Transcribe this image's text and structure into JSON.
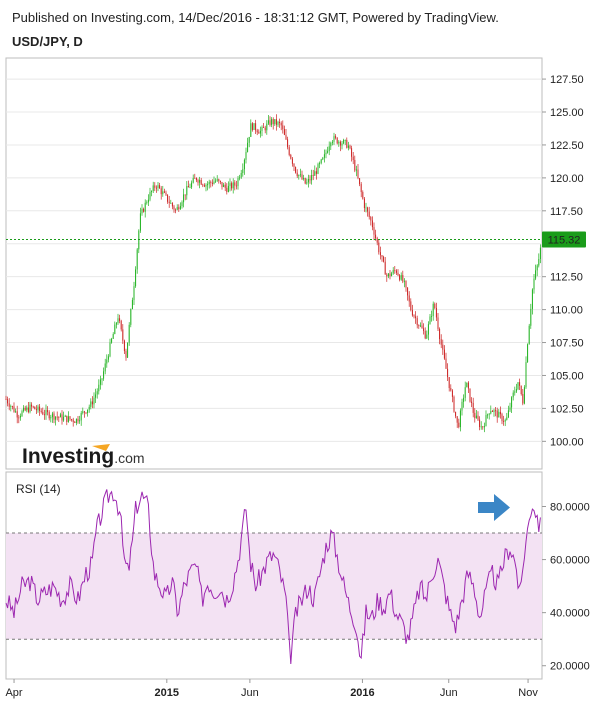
{
  "header": {
    "published": "Published on Investing.com, 14/Dec/2016 - 18:31:12 GMT, Powered by TradingView.",
    "symbol": "USD/JPY, D"
  },
  "watermark": {
    "brand": "Investing",
    "suffix": ".com"
  },
  "colors": {
    "up": "#21b221",
    "down": "#cc2222",
    "rsi_line": "#9c27b0",
    "rsi_band": "#f3e2f3",
    "price_line": "#1a9c1a",
    "arrow": "#3b86c6",
    "grid": "#e8e8e8"
  },
  "chart_data": [
    {
      "type": "candlestick",
      "title": "USD/JPY, D",
      "ylim": [
        97.9,
        129.1
      ],
      "yticks": [
        "127.50",
        "125.00",
        "122.50",
        "120.00",
        "117.50",
        "115.00",
        "112.50",
        "110.00",
        "107.50",
        "105.00",
        "102.50",
        "100.00"
      ],
      "last_price": "115.32",
      "grid": true,
      "path": [
        [
          0,
          103.2
        ],
        [
          12,
          102.0
        ],
        [
          25,
          102.6
        ],
        [
          40,
          102.1
        ],
        [
          55,
          101.8
        ],
        [
          70,
          101.6
        ],
        [
          85,
          102.8
        ],
        [
          95,
          104.5
        ],
        [
          105,
          107.5
        ],
        [
          112,
          109.5
        ],
        [
          120,
          106.5
        ],
        [
          128,
          112.0
        ],
        [
          134,
          117.0
        ],
        [
          142,
          118.5
        ],
        [
          150,
          119.5
        ],
        [
          160,
          118.5
        ],
        [
          170,
          117.5
        ],
        [
          180,
          119.0
        ],
        [
          190,
          120.0
        ],
        [
          200,
          119.5
        ],
        [
          210,
          119.8
        ],
        [
          220,
          119.2
        ],
        [
          230,
          119.5
        ],
        [
          237,
          121.0
        ],
        [
          245,
          124.0
        ],
        [
          255,
          123.5
        ],
        [
          265,
          124.3
        ],
        [
          275,
          124.0
        ],
        [
          283,
          122.0
        ],
        [
          290,
          120.5
        ],
        [
          300,
          119.5
        ],
        [
          310,
          120.5
        ],
        [
          318,
          121.5
        ],
        [
          325,
          123.0
        ],
        [
          333,
          122.8
        ],
        [
          342,
          122.5
        ],
        [
          350,
          120.5
        ],
        [
          358,
          118.0
        ],
        [
          366,
          116.5
        ],
        [
          373,
          114.5
        ],
        [
          381,
          112.5
        ],
        [
          390,
          113.0
        ],
        [
          398,
          112.0
        ],
        [
          405,
          110.0
        ],
        [
          412,
          109.0
        ],
        [
          420,
          108.0
        ],
        [
          428,
          110.5
        ],
        [
          436,
          107.0
        ],
        [
          444,
          104.0
        ],
        [
          452,
          101.0
        ],
        [
          460,
          104.5
        ],
        [
          468,
          102.0
        ],
        [
          476,
          101.0
        ],
        [
          484,
          102.5
        ],
        [
          492,
          102.0
        ],
        [
          500,
          101.5
        ],
        [
          507,
          103.5
        ],
        [
          512,
          104.5
        ],
        [
          517,
          103.0
        ],
        [
          522,
          108.0
        ],
        [
          527,
          112.0
        ],
        [
          532,
          113.5
        ],
        [
          536,
          115.3
        ]
      ]
    },
    {
      "type": "line",
      "title": "RSI (14)",
      "ylim": [
        15,
        93
      ],
      "yticks": [
        "80.0000",
        "60.0000",
        "40.0000",
        "20.0000"
      ],
      "band": [
        30,
        70
      ],
      "series": [
        {
          "name": "RSI (14)",
          "points": [
            [
              0,
              45
            ],
            [
              8,
              40
            ],
            [
              16,
              50
            ],
            [
              24,
              52
            ],
            [
              32,
              45
            ],
            [
              40,
              48
            ],
            [
              48,
              50
            ],
            [
              56,
              45
            ],
            [
              64,
              50
            ],
            [
              72,
              45
            ],
            [
              80,
              55
            ],
            [
              86,
              58
            ],
            [
              90,
              70
            ],
            [
              96,
              78
            ],
            [
              102,
              84
            ],
            [
              108,
              86
            ],
            [
              114,
              78
            ],
            [
              118,
              60
            ],
            [
              122,
              55
            ],
            [
              126,
              65
            ],
            [
              130,
              80
            ],
            [
              136,
              84
            ],
            [
              142,
              80
            ],
            [
              148,
              55
            ],
            [
              154,
              50
            ],
            [
              160,
              45
            ],
            [
              166,
              52
            ],
            [
              172,
              40
            ],
            [
              178,
              50
            ],
            [
              184,
              55
            ],
            [
              190,
              58
            ],
            [
              196,
              45
            ],
            [
              202,
              52
            ],
            [
              208,
              48
            ],
            [
              214,
              50
            ],
            [
              220,
              45
            ],
            [
              226,
              50
            ],
            [
              232,
              60
            ],
            [
              237,
              72
            ],
            [
              240,
              80
            ],
            [
              244,
              60
            ],
            [
              250,
              50
            ],
            [
              256,
              55
            ],
            [
              262,
              60
            ],
            [
              268,
              62
            ],
            [
              274,
              55
            ],
            [
              280,
              45
            ],
            [
              284,
              22
            ],
            [
              290,
              40
            ],
            [
              296,
              45
            ],
            [
              302,
              50
            ],
            [
              308,
              45
            ],
            [
              314,
              55
            ],
            [
              320,
              65
            ],
            [
              326,
              70
            ],
            [
              332,
              60
            ],
            [
              338,
              50
            ],
            [
              344,
              42
            ],
            [
              350,
              36
            ],
            [
              355,
              22
            ],
            [
              360,
              40
            ],
            [
              366,
              38
            ],
            [
              372,
              45
            ],
            [
              378,
              42
            ],
            [
              384,
              48
            ],
            [
              390,
              40
            ],
            [
              396,
              36
            ],
            [
              402,
              30
            ],
            [
              408,
              40
            ],
            [
              414,
              50
            ],
            [
              420,
              45
            ],
            [
              426,
              55
            ],
            [
              432,
              60
            ],
            [
              438,
              50
            ],
            [
              444,
              40
            ],
            [
              450,
              35
            ],
            [
              456,
              45
            ],
            [
              462,
              55
            ],
            [
              468,
              50
            ],
            [
              474,
              38
            ],
            [
              480,
              48
            ],
            [
              486,
              55
            ],
            [
              492,
              50
            ],
            [
              498,
              60
            ],
            [
              504,
              65
            ],
            [
              510,
              58
            ],
            [
              514,
              45
            ],
            [
              518,
              62
            ],
            [
              522,
              72
            ],
            [
              526,
              82
            ],
            [
              530,
              78
            ],
            [
              534,
              72
            ],
            [
              536,
              73
            ]
          ]
        }
      ]
    }
  ],
  "xaxis": {
    "ticks": [
      {
        "label": "Apr",
        "pos": 0.015,
        "bold": false
      },
      {
        "label": "2015",
        "pos": 0.3,
        "bold": true
      },
      {
        "label": "Jun",
        "pos": 0.455,
        "bold": false
      },
      {
        "label": "2016",
        "pos": 0.665,
        "bold": true
      },
      {
        "label": "Jun",
        "pos": 0.826,
        "bold": false
      },
      {
        "label": "Nov",
        "pos": 0.974,
        "bold": false
      }
    ]
  }
}
